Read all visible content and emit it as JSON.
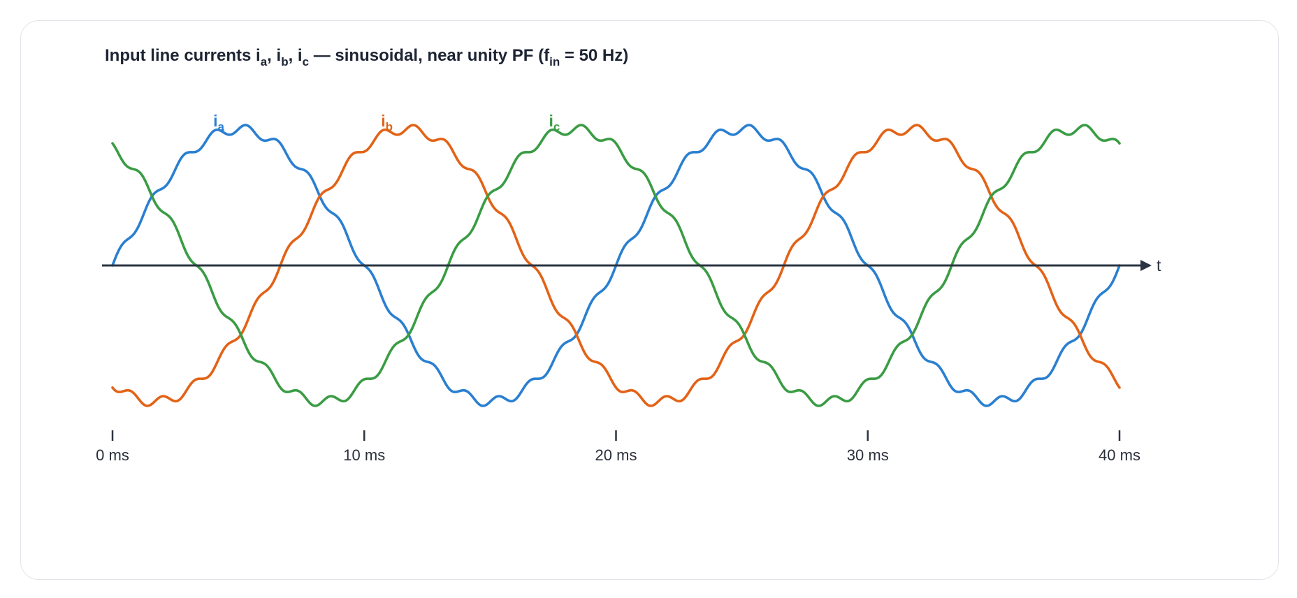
{
  "chart_data": {
    "type": "line",
    "title": {
      "prefix": "Input line currents ",
      "i1": "i",
      "s1": "a",
      "sep1": ", ",
      "i2": "i",
      "s2": "b",
      "sep2": ", ",
      "i3": "i",
      "s3": "c",
      "middle": " — sinusoidal, near unity PF  (f",
      "fsub": "in",
      "suffix": " = 50 Hz)"
    },
    "xlabel": "t",
    "x_unit": "ms",
    "xlim": [
      0,
      40
    ],
    "ylim": [
      -1.1,
      1.1
    ],
    "grid": false,
    "x_ticks": [
      {
        "value": 0,
        "label": "0 ms"
      },
      {
        "value": 10,
        "label": "10 ms"
      },
      {
        "value": 20,
        "label": "20 ms"
      },
      {
        "value": 30,
        "label": "30 ms"
      },
      {
        "value": 40,
        "label": "40 ms"
      }
    ],
    "fundamental_hz": 50,
    "ripple": {
      "harmonic_order": 16,
      "amplitude": 0.035
    },
    "series": [
      {
        "name": "i",
        "sub": "a",
        "phase_deg": 0,
        "amplitude": 1.0,
        "color": "#2a7fd0"
      },
      {
        "name": "i",
        "sub": "b",
        "phase_deg": -120,
        "amplitude": 1.0,
        "color": "#e26317"
      },
      {
        "name": "i",
        "sub": "c",
        "phase_deg": 120,
        "amplitude": 1.0,
        "color": "#3a9c44"
      }
    ]
  }
}
